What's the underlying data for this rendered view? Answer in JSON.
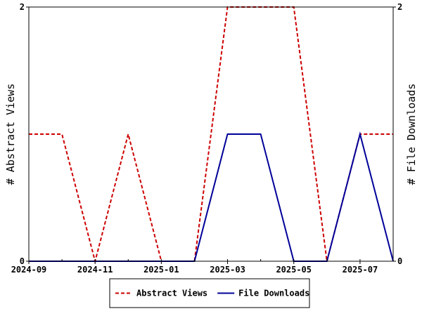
{
  "chart_data": {
    "type": "line",
    "x": [
      "2024-09",
      "2024-10",
      "2024-11",
      "2024-12",
      "2025-01",
      "2025-02",
      "2025-03",
      "2025-04",
      "2025-05",
      "2025-06",
      "2025-07",
      "2025-08"
    ],
    "x_tick_labels": [
      "2024-09",
      "2024-11",
      "2025-01",
      "2025-03",
      "2025-05",
      "2025-07"
    ],
    "series": [
      {
        "name": "Abstract Views",
        "axis": "left",
        "color": "#cc0000",
        "style": "dashed",
        "values": [
          1,
          1,
          0,
          1,
          0,
          0,
          2,
          2,
          2,
          0,
          1,
          1
        ]
      },
      {
        "name": "File Downloads",
        "axis": "right",
        "color": "#000099",
        "style": "solid",
        "values": [
          0,
          0,
          0,
          0,
          0,
          0,
          1,
          1,
          0,
          0,
          1,
          0
        ]
      }
    ],
    "ylabel_left": "# Abstract Views",
    "ylabel_right": "# File Downloads",
    "ylim_left": [
      0,
      2
    ],
    "ylim_right": [
      0,
      2
    ],
    "y_ticks_left": [
      "0",
      "2"
    ],
    "y_ticks_right": [
      "0",
      "2"
    ],
    "grid": false,
    "legend_position": "bottom-center"
  }
}
